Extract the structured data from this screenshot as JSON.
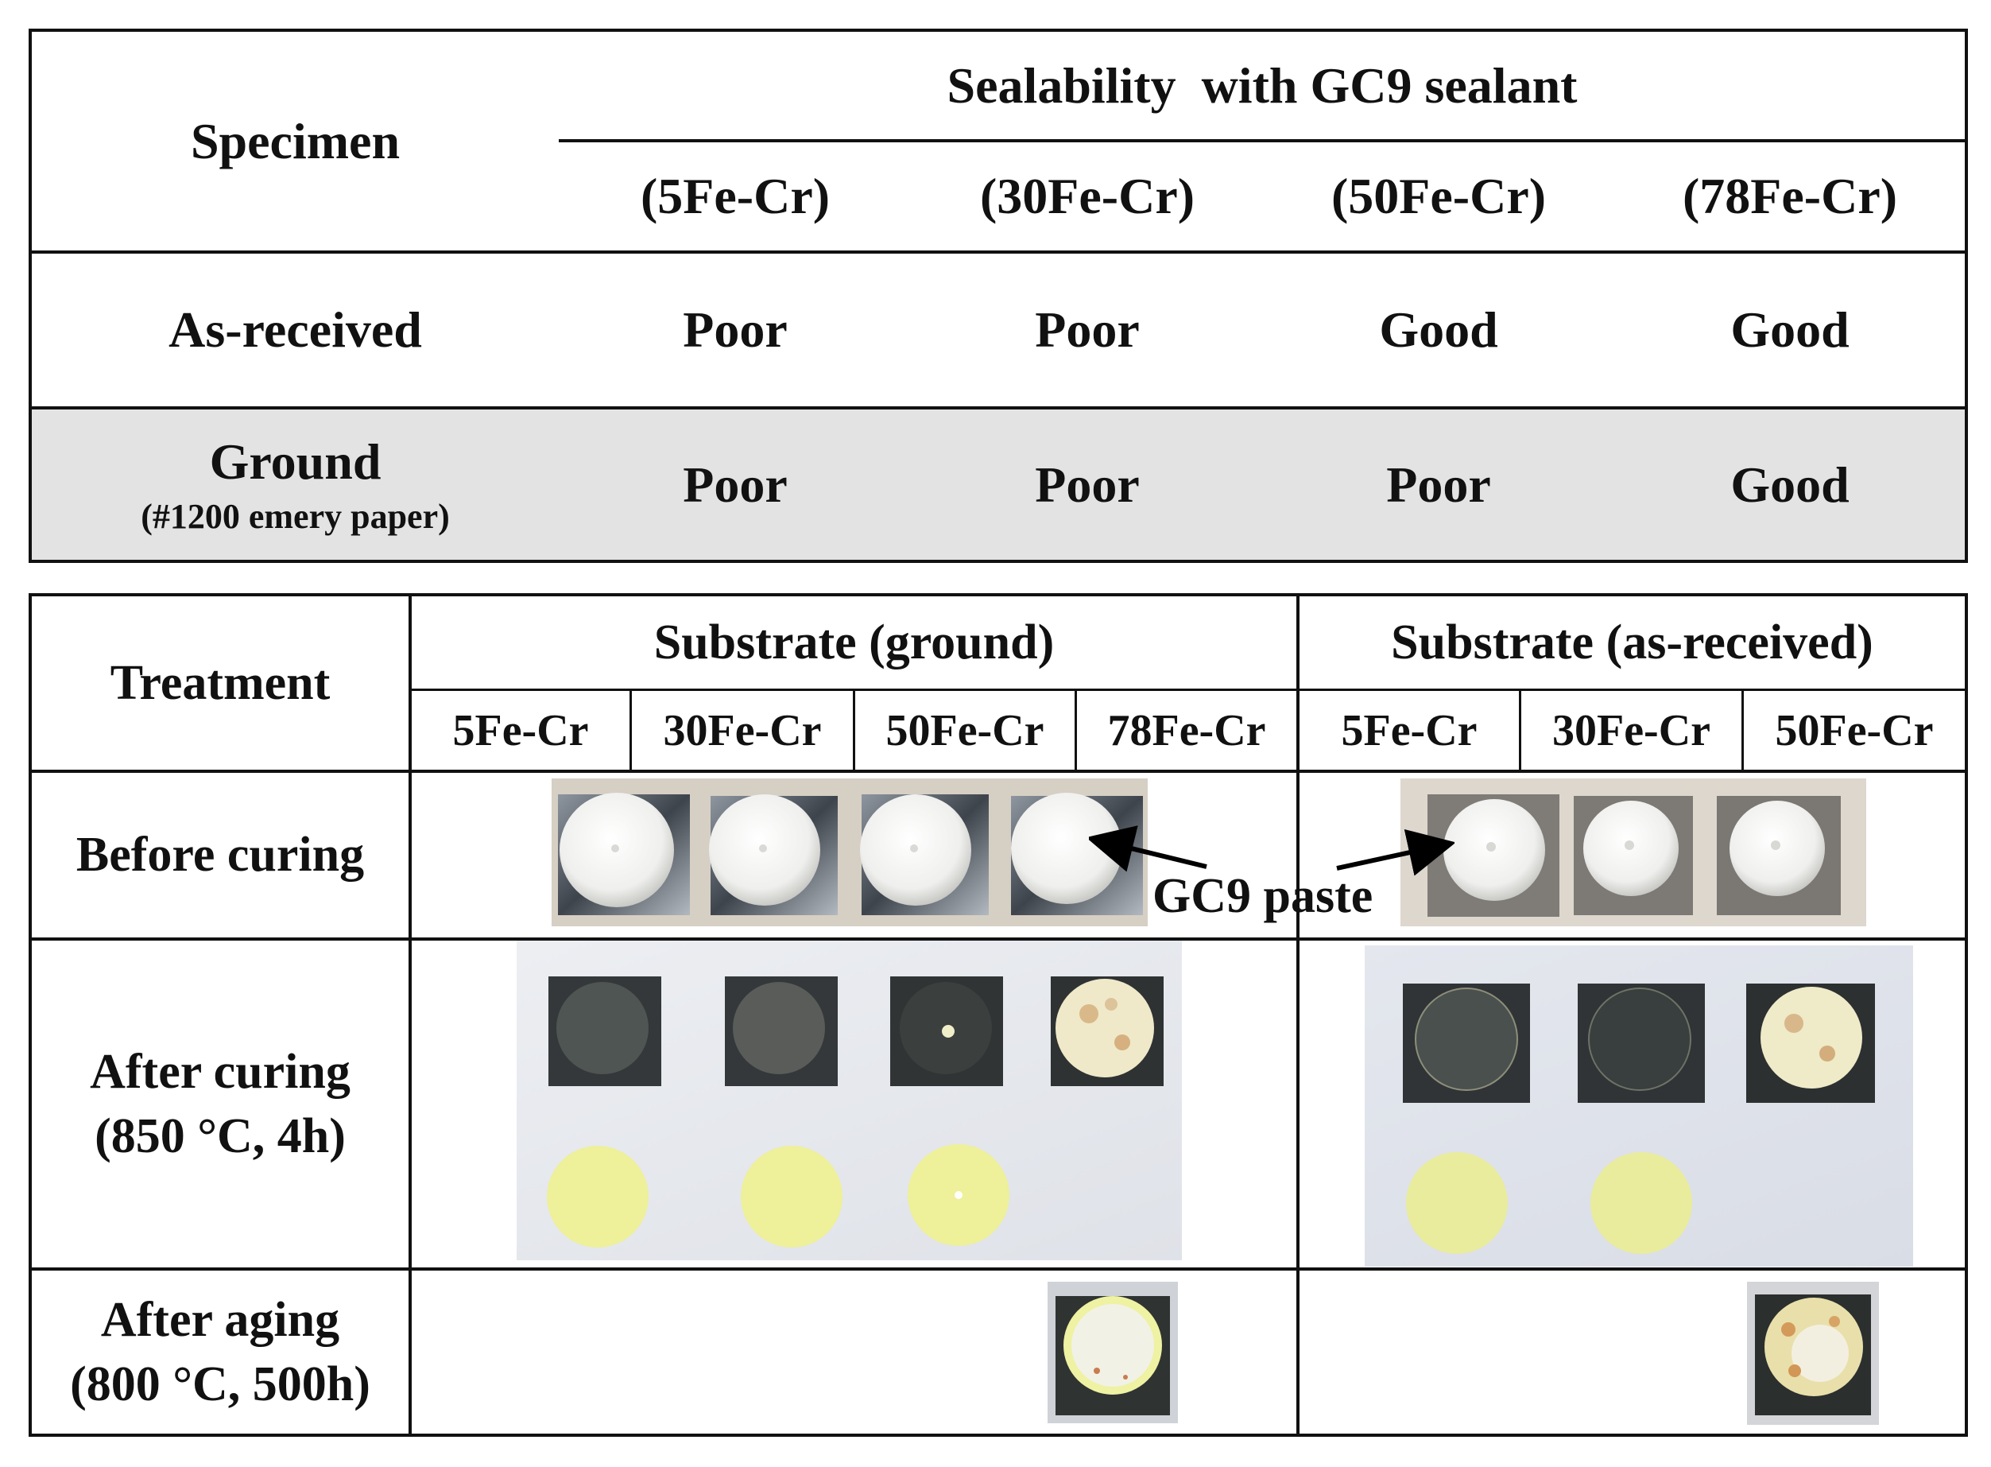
{
  "table1": {
    "header": {
      "specimen": "Specimen",
      "group": "Sealability  with GC9 sealant",
      "columns": [
        "(5Fe-Cr)",
        "(30Fe-Cr)",
        "(50Fe-Cr)",
        "(78Fe-Cr)"
      ]
    },
    "rows": [
      {
        "label": "As-received",
        "sublabel": "",
        "values": [
          "Poor",
          "Poor",
          "Good",
          "Good"
        ]
      },
      {
        "label": "Ground",
        "sublabel": "(#1200 emery paper)",
        "values": [
          "Poor",
          "Poor",
          "Poor",
          "Good"
        ]
      }
    ],
    "colors": {
      "shaded_row": "#e3e3e3",
      "border": "#111111"
    }
  },
  "table2": {
    "header": {
      "treatment": "Treatment",
      "group_ground": "Substrate (ground)",
      "group_asreceived": "Substrate (as-received)",
      "ground_columns": [
        "5Fe-Cr",
        "30Fe-Cr",
        "50Fe-Cr",
        "78Fe-Cr"
      ],
      "asreceived_columns": [
        "5Fe-Cr",
        "30Fe-Cr",
        "50Fe-Cr"
      ]
    },
    "rows": {
      "before_curing": "Before curing",
      "after_curing_line1": "After curing",
      "after_curing_line2": "(850 °C, 4h)",
      "after_aging_line1": "After aging",
      "after_aging_line2": "(800 °C, 500h)"
    },
    "annotation": "GC9 paste",
    "colors": {
      "paste_white": "#f4f4f2",
      "substrate_ground": "#5a6068",
      "substrate_asreceived": "#7d7a76",
      "cured_dark": "#3a3e40",
      "sealant_yellow": "#eef09a",
      "aged_white": "#f1efe2"
    }
  }
}
